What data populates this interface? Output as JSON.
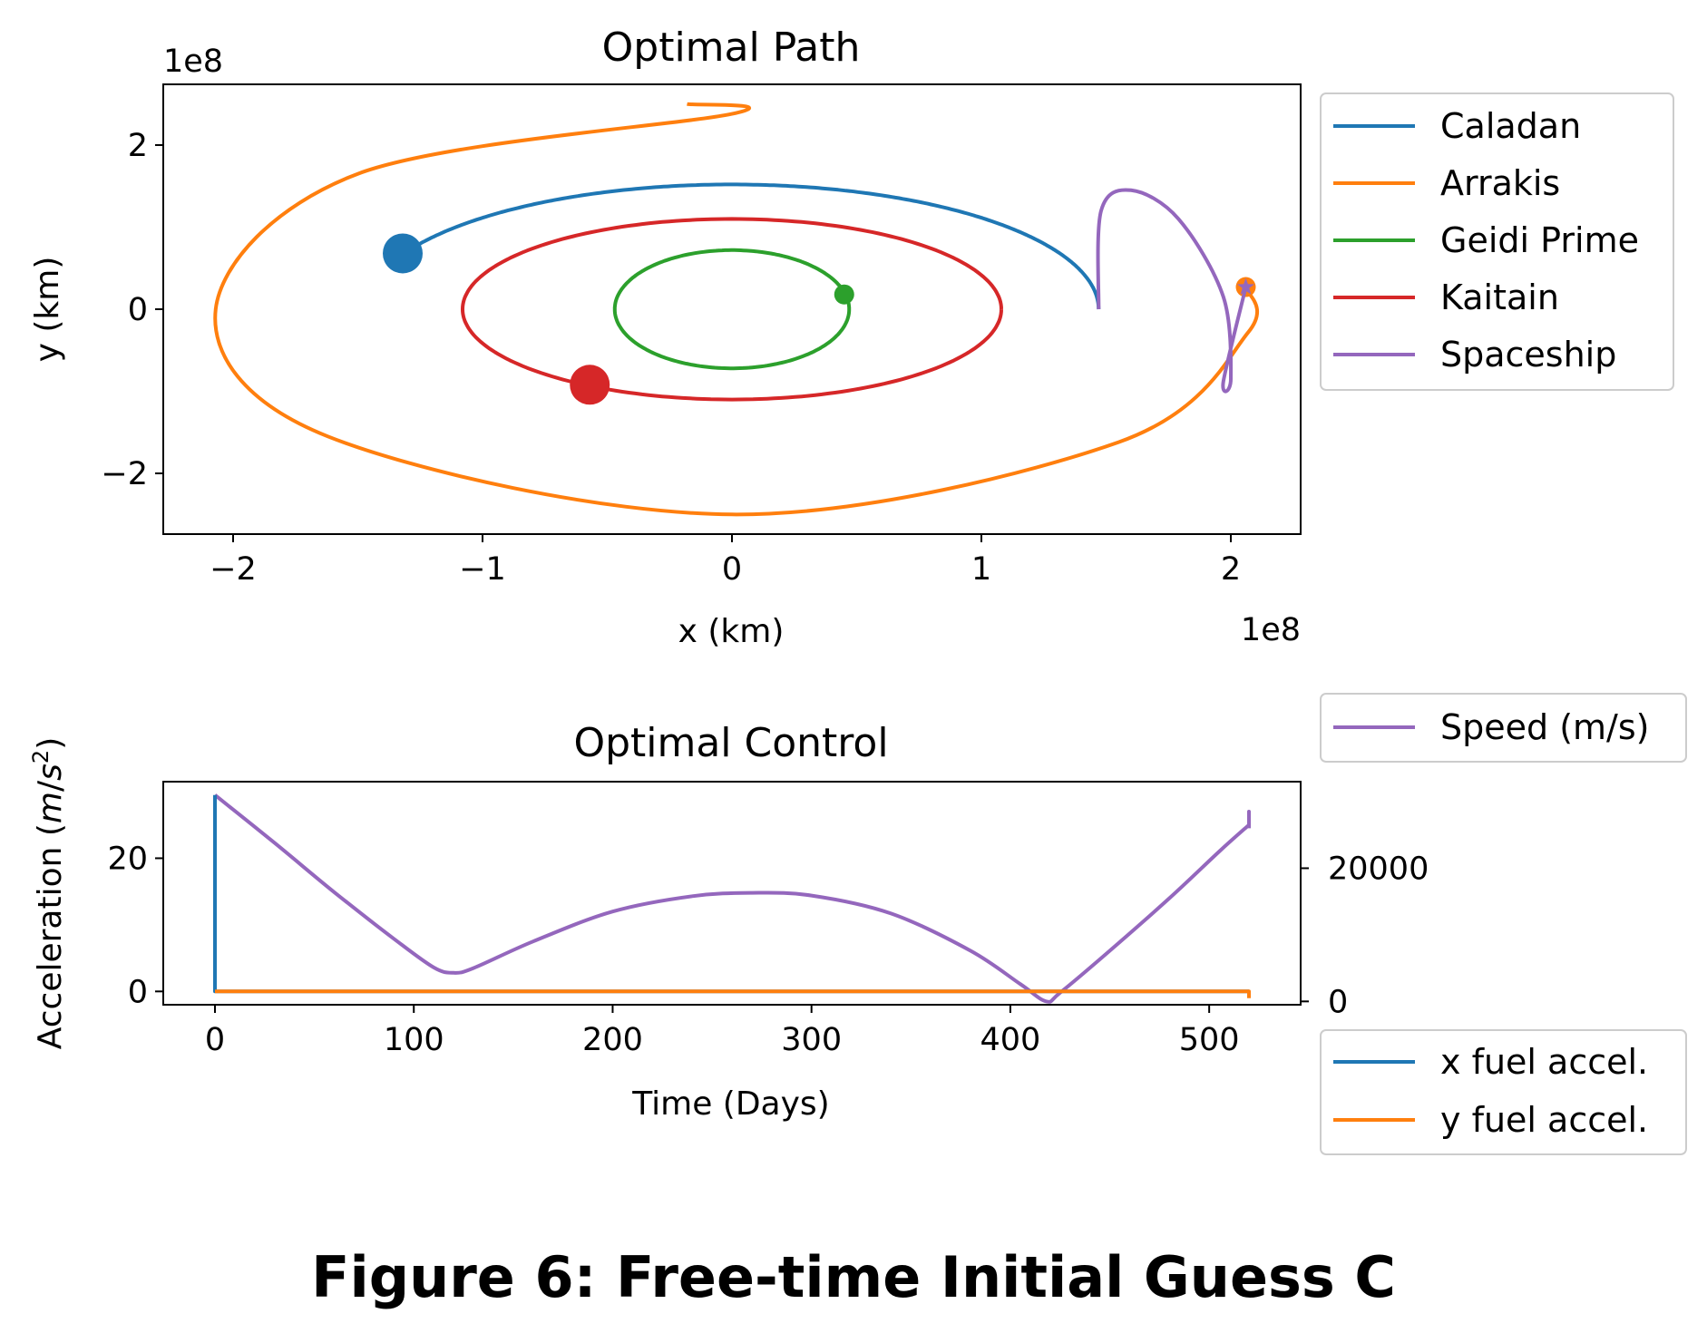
{
  "caption": "Figure 6: Free-time Initial Guess C",
  "colors": {
    "Caladan": "#1f77b4",
    "Arrakis": "#ff7f0e",
    "Geidi Prime": "#2ca02c",
    "Kaitain": "#d62728",
    "Spaceship": "#9467bd"
  },
  "chart_data": [
    {
      "type": "line",
      "title": "Optimal Path",
      "xlabel": "x (km)",
      "ylabel": "y (km)",
      "x_offset_label": "1e8",
      "y_offset_label": "1e8",
      "xlim": [
        -2.28,
        2.28
      ],
      "ylim": [
        -2.74,
        2.74
      ],
      "xticks": [
        -2,
        -1,
        0,
        1,
        2
      ],
      "xtick_labels": [
        "−2",
        "−1",
        "0",
        "1",
        "2"
      ],
      "yticks": [
        -2,
        0,
        2
      ],
      "ytick_labels": [
        "−2",
        "0",
        "2"
      ],
      "legend_position": "outside-right",
      "legend": [
        "Caladan",
        "Arrakis",
        "Geidi Prime",
        "Kaitain",
        "Spaceship"
      ],
      "series": [
        {
          "name": "Caladan",
          "kind": "ellipse",
          "a": 1.47,
          "b": 1.52,
          "start_angle_deg": 0,
          "end_angle_deg": 154,
          "marker": [
            -1.32,
            0.68
          ],
          "marker_size": "large"
        },
        {
          "name": "Arrakis",
          "kind": "spiral",
          "points": [
            [
              2.06,
              0.27
            ],
            [
              2.07,
              -0.28
            ],
            [
              1.55,
              -1.62
            ],
            [
              0,
              -2.5
            ],
            [
              -1.62,
              -1.55
            ],
            [
              -2.07,
              0
            ],
            [
              -1.5,
              1.65
            ],
            [
              0,
              2.38
            ],
            [
              -0.18,
              2.5
            ]
          ],
          "marker": [
            2.06,
            0.27
          ],
          "marker_size": "small"
        },
        {
          "name": "Geidi Prime",
          "kind": "ellipse",
          "a": 0.47,
          "b": 0.72,
          "start_angle_deg": 16,
          "end_angle_deg": 380,
          "marker": [
            0.45,
            0.18
          ],
          "marker_size": "small"
        },
        {
          "name": "Kaitain",
          "kind": "ellipse",
          "a": 1.08,
          "b": 1.1,
          "start_angle_deg": 0,
          "end_angle_deg": 360,
          "marker": [
            -0.57,
            -0.92
          ],
          "marker_size": "large"
        },
        {
          "name": "Spaceship",
          "kind": "path",
          "points": [
            [
              1.47,
              0
            ],
            [
              1.48,
              1.2
            ],
            [
              1.6,
              1.45
            ],
            [
              1.79,
              1.1
            ],
            [
              1.97,
              0.15
            ],
            [
              2.0,
              -0.85
            ],
            [
              1.97,
              -0.88
            ],
            [
              2.06,
              0.27
            ]
          ],
          "end_marker": "star"
        }
      ]
    },
    {
      "type": "line",
      "title": "Optimal Control",
      "xlabel": "Time (Days)",
      "ylabel": "Acceleration (m/s²)",
      "xlim": [
        -26,
        546
      ],
      "ylim": [
        -2,
        31.5
      ],
      "xticks": [
        0,
        100,
        200,
        300,
        400,
        500
      ],
      "yticks": [
        0,
        20
      ],
      "y2lim": [
        -500,
        33000
      ],
      "y2ticks": [
        0,
        20000
      ],
      "legend_top": "Speed (m/s)",
      "legend_bottom": [
        "x fuel accel.",
        "y fuel accel."
      ],
      "series": [
        {
          "name": "x fuel accel.",
          "axis": "left",
          "x": [
            0,
            0,
            0,
            520
          ],
          "y": [
            29.5,
            0,
            0,
            0
          ]
        },
        {
          "name": "y fuel accel.",
          "axis": "left",
          "x": [
            0,
            520,
            520
          ],
          "y": [
            0,
            0,
            -1
          ]
        },
        {
          "name": "Speed (m/s)",
          "axis": "right",
          "x": [
            0,
            30,
            60,
            90,
            110,
            120,
            130,
            160,
            200,
            240,
            270,
            300,
            340,
            380,
            405,
            418,
            425,
            450,
            480,
            505,
            520,
            520,
            520
          ],
          "y": [
            31000,
            23800,
            16400,
            9400,
            5100,
            4300,
            5000,
            9000,
            13500,
            15800,
            16300,
            15900,
            13200,
            7600,
            2600,
            0,
            1300,
            7600,
            15500,
            22500,
            26500,
            28500,
            26000
          ]
        }
      ]
    }
  ]
}
